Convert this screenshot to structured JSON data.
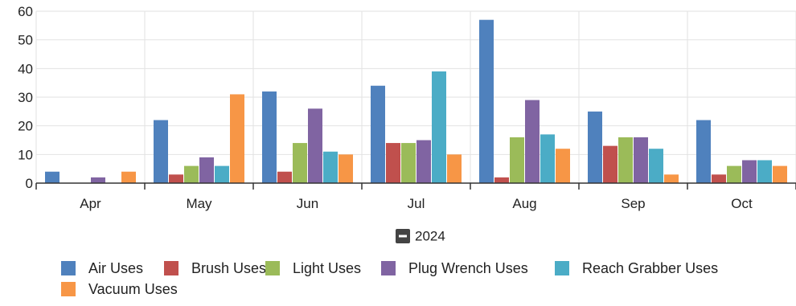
{
  "chart_data": {
    "type": "bar",
    "title": "",
    "xlabel": "",
    "ylabel": "",
    "ylim": [
      0,
      60
    ],
    "yticks": [
      0,
      10,
      20,
      30,
      40,
      50,
      60
    ],
    "grid": true,
    "legend_position": "bottom",
    "x_group_label": "2024",
    "categories": [
      "Apr",
      "May",
      "Jun",
      "Jul",
      "Aug",
      "Sep",
      "Oct"
    ],
    "series": [
      {
        "name": "Air Uses",
        "color": "#4f81bd",
        "values": [
          4,
          22,
          32,
          34,
          57,
          25,
          22
        ]
      },
      {
        "name": "Brush Uses",
        "color": "#c0504d",
        "values": [
          0,
          3,
          4,
          14,
          2,
          13,
          3
        ]
      },
      {
        "name": "Light Uses",
        "color": "#9bbb59",
        "values": [
          0,
          6,
          14,
          14,
          16,
          16,
          6
        ]
      },
      {
        "name": "Plug Wrench Uses",
        "color": "#8064a2",
        "values": [
          2,
          9,
          26,
          15,
          29,
          16,
          8
        ]
      },
      {
        "name": "Reach Grabber Uses",
        "color": "#4bacc6",
        "values": [
          0,
          6,
          11,
          39,
          17,
          12,
          8
        ]
      },
      {
        "name": "Vacuum Uses",
        "color": "#f79646",
        "values": [
          4,
          31,
          10,
          10,
          12,
          3,
          6
        ]
      }
    ]
  }
}
